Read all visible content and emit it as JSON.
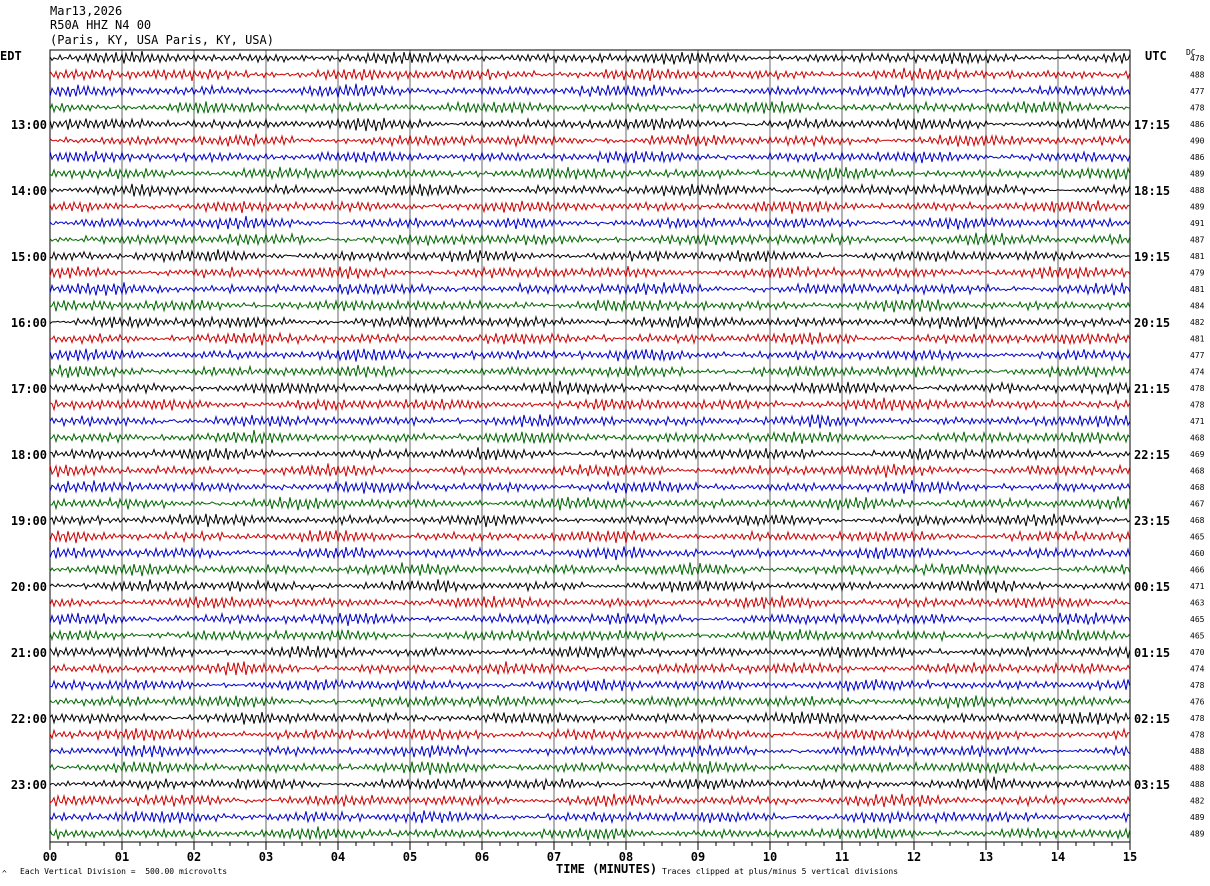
{
  "header": {
    "date": "Mar13,2026",
    "station": "R50A HHZ N4 00",
    "location": "(Paris, KY, USA Paris, KY, USA)"
  },
  "labels": {
    "left_timezone": "EDT",
    "right_timezone": "UTC",
    "dc": "DC"
  },
  "footer": {
    "scale": "Each Vertical Division =  500.00 microvolts",
    "xlabel": "TIME (MINUTES)",
    "clip_note": "Traces clipped at plus/minus 5 vertical divisions",
    "mark": "^"
  },
  "colors": {
    "trace_cycle": [
      "#000000",
      "#cc0000",
      "#0000cc",
      "#006600"
    ],
    "grid": "#000000",
    "frame": "#000000"
  },
  "chart_data": {
    "type": "line",
    "title": "",
    "xlabel": "TIME (MINUTES)",
    "ylabel": "",
    "xlim": [
      0,
      15
    ],
    "x_tick_labels": [
      "00",
      "01",
      "02",
      "03",
      "04",
      "05",
      "06",
      "07",
      "08",
      "09",
      "10",
      "11",
      "12",
      "13",
      "14",
      "15"
    ],
    "rows_per_hour": 4,
    "row_count": 48,
    "left_hour_labels": [
      "13:00",
      "14:00",
      "15:00",
      "16:00",
      "17:00",
      "18:00",
      "19:00",
      "20:00",
      "21:00",
      "22:00",
      "23:00"
    ],
    "right_hour_labels": [
      "17:15",
      "18:15",
      "19:15",
      "20:15",
      "21:15",
      "22:15",
      "23:15",
      "00:15",
      "01:15",
      "02:15",
      "03:15"
    ],
    "first_hour_label_row": 4,
    "dc_values": [
      "478",
      "488",
      "477",
      "478",
      "486",
      "490",
      "486",
      "489",
      "488",
      "489",
      "491",
      "487",
      "481",
      "479",
      "481",
      "484",
      "482",
      "481",
      "477",
      "474",
      "478",
      "478",
      "471",
      "468",
      "469",
      "468",
      "468",
      "467",
      "468",
      "465",
      "460",
      "466",
      "471",
      "463",
      "465",
      "465",
      "470",
      "474",
      "478",
      "476",
      "478",
      "478",
      "488",
      "488",
      "488",
      "482",
      "489",
      "489"
    ],
    "trace_amplitude_divisions": 0.35,
    "trace_oscillation_cycles_per_minute": 22,
    "grid": true
  }
}
